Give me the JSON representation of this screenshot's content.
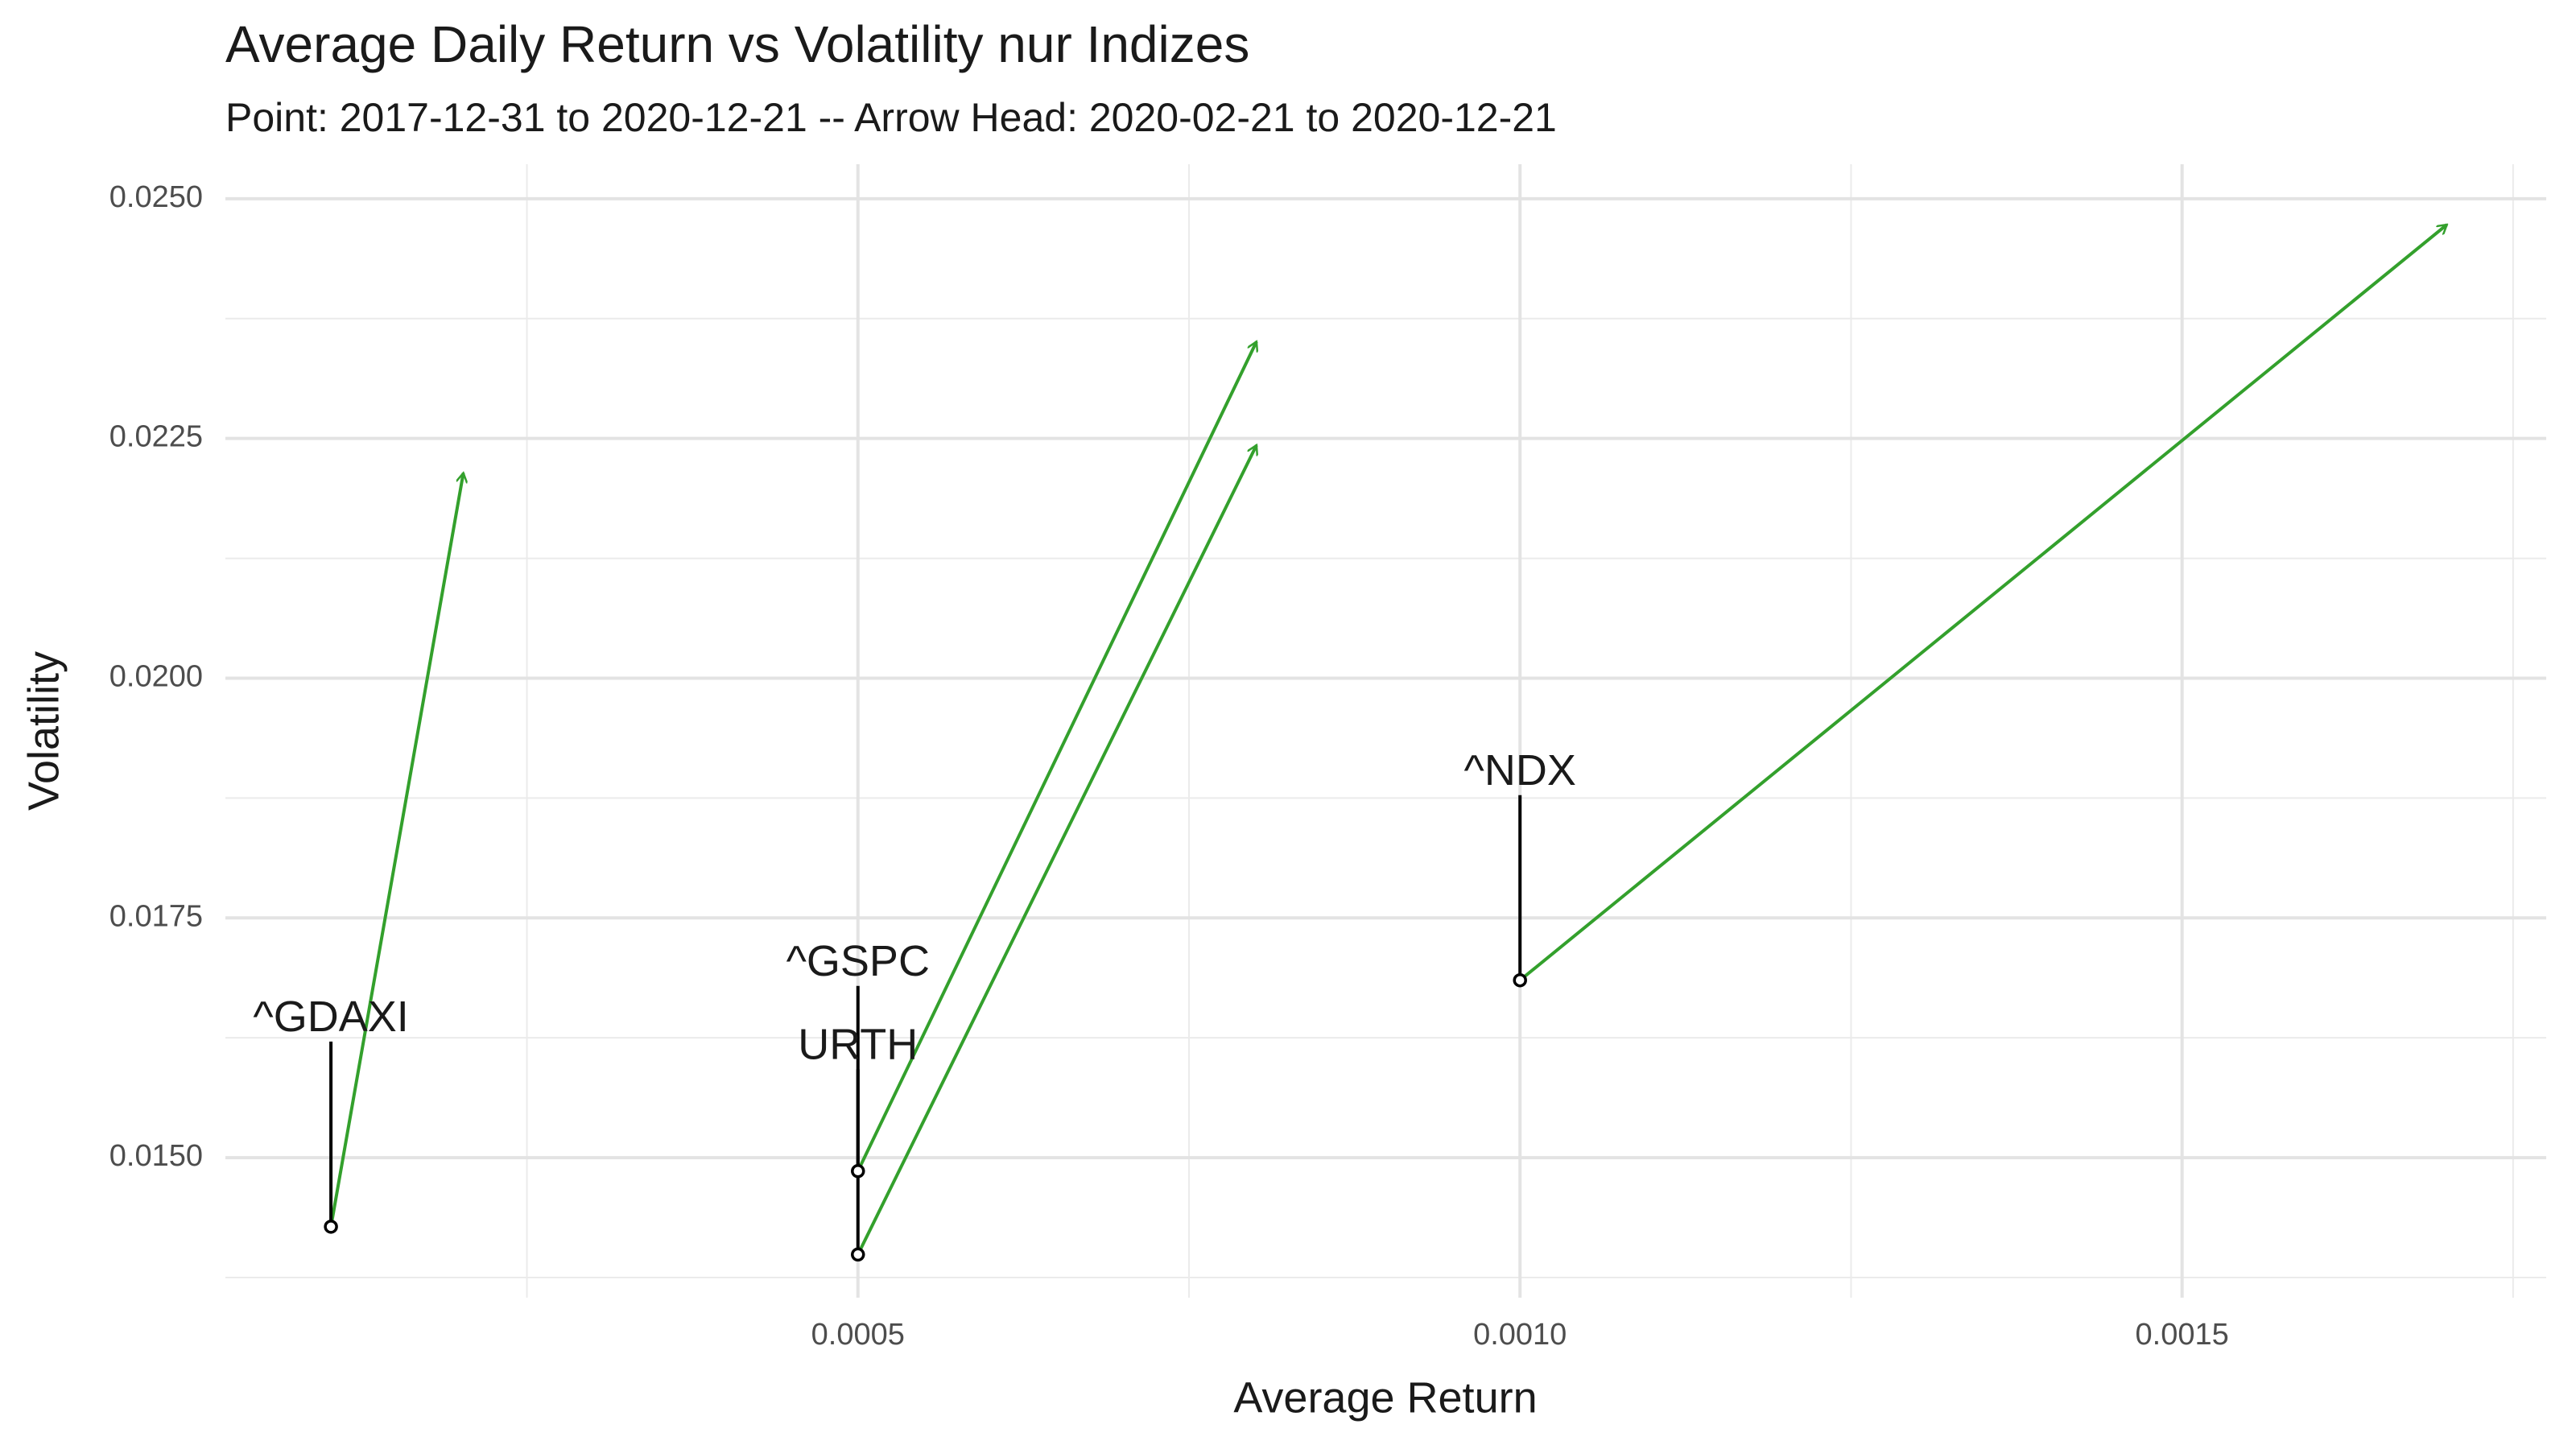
{
  "chart_data": {
    "type": "scatter",
    "title": "Average Daily Return vs Volatility nur Indizes",
    "subtitle": "Point: 2017-12-31 to 2020-12-21 -- Arrow Head: 2020-02-21 to 2020-12-21",
    "x_label": "Average Return",
    "y_label": "Volatility",
    "labels": [
      "^GDAXI",
      "^GSPC",
      "URTH",
      "^NDX"
    ],
    "x": [
      0.000102,
      0.0005,
      0.0005,
      0.001
    ],
    "y": [
      0.01428,
      0.01486,
      0.01399,
      0.01685
    ],
    "x_end": [
      0.000202,
      0.000801,
      0.000801,
      0.0017
    ],
    "y_end": [
      0.02214,
      0.02351,
      0.02243,
      0.02473
    ],
    "point_color": "#000000",
    "arrow_color": "#33a02c",
    "xlim": [
      2.23e-05,
      0.001775
    ],
    "ylim": [
      0.01354,
      0.02536
    ],
    "xticks": [
      {
        "value": 0.0005,
        "label": "0.0005"
      },
      {
        "value": 0.001,
        "label": "0.0010"
      },
      {
        "value": 0.0015,
        "label": "0.0015"
      }
    ],
    "yticks": [
      {
        "value": 0.015,
        "label": "0.0150"
      },
      {
        "value": 0.0175,
        "label": "0.0175"
      },
      {
        "value": 0.02,
        "label": "0.0200"
      },
      {
        "value": 0.0225,
        "label": "0.0225"
      },
      {
        "value": 0.025,
        "label": "0.0250"
      }
    ],
    "x_minor_ticks": [
      0.00025,
      0.00075,
      0.00125,
      0.00175
    ],
    "y_minor_ticks": [
      0.01375,
      0.01625,
      0.01875,
      0.02125,
      0.02375
    ],
    "grid": true
  }
}
